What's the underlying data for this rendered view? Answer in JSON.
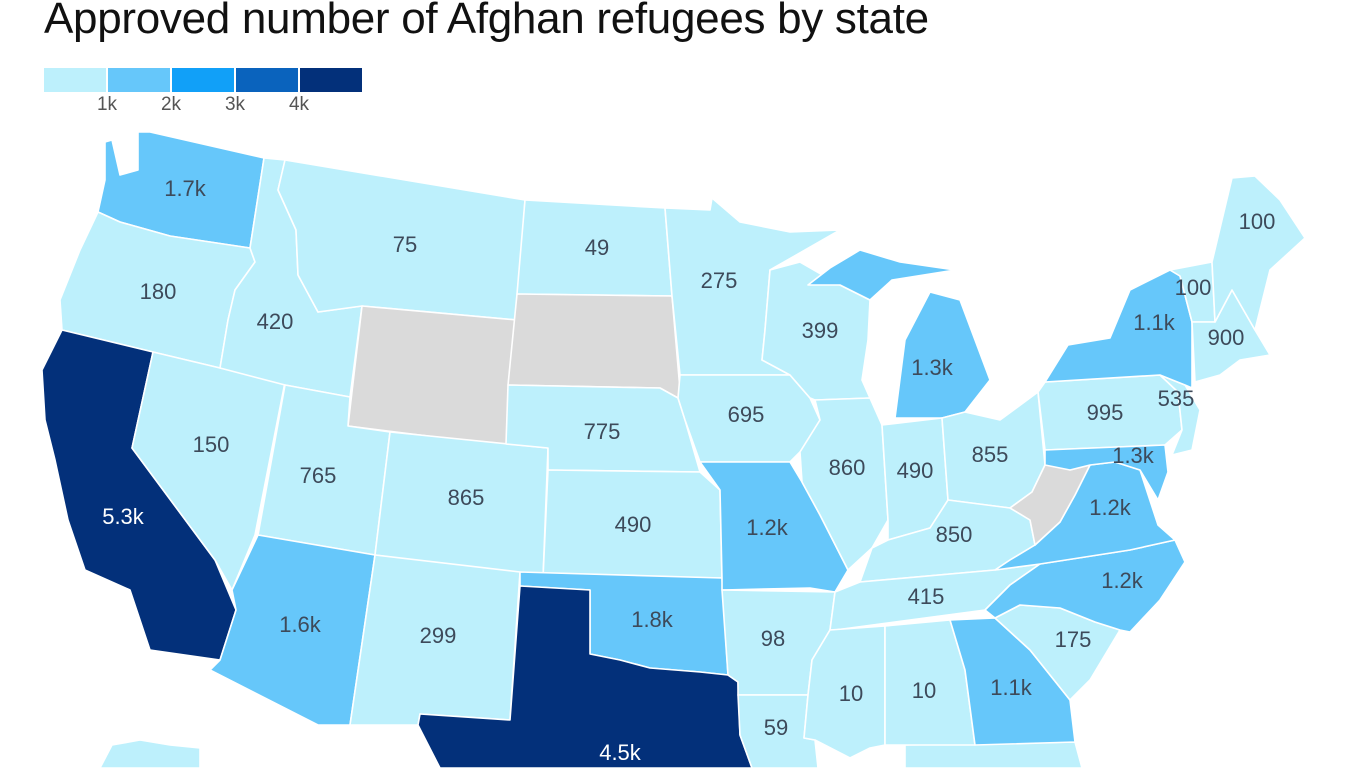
{
  "title": "Approved number of Afghan refugees by state",
  "legend": {
    "bins": [
      {
        "color": "#bdf0fc",
        "range": [
          0,
          1000
        ]
      },
      {
        "color": "#66c7fa",
        "range": [
          1000,
          2000
        ]
      },
      {
        "color": "#11a0f8",
        "range": [
          2000,
          3000
        ]
      },
      {
        "color": "#0a63bd",
        "range": [
          3000,
          4000
        ]
      },
      {
        "color": "#03307a",
        "range": [
          4000,
          null
        ]
      }
    ],
    "tick_labels": [
      "1k",
      "2k",
      "3k",
      "4k"
    ]
  },
  "colors": {
    "no_data": "#dadada",
    "label_dark": "#3d4a5a",
    "label_light": "#ffffff"
  },
  "chart_data": {
    "type": "choropleth",
    "regions": [
      {
        "state": "Washington",
        "value": 1700,
        "label": "1.7k"
      },
      {
        "state": "Oregon",
        "value": 180,
        "label": "180"
      },
      {
        "state": "California",
        "value": 5300,
        "label": "5.3k"
      },
      {
        "state": "Idaho",
        "value": 420,
        "label": "420"
      },
      {
        "state": "Nevada",
        "value": 150,
        "label": "150"
      },
      {
        "state": "Montana",
        "value": 75,
        "label": "75"
      },
      {
        "state": "Wyoming",
        "value": null,
        "label": ""
      },
      {
        "state": "Utah",
        "value": 765,
        "label": "765"
      },
      {
        "state": "Arizona",
        "value": 1600,
        "label": "1.6k"
      },
      {
        "state": "Colorado",
        "value": 865,
        "label": "865"
      },
      {
        "state": "New Mexico",
        "value": 299,
        "label": "299"
      },
      {
        "state": "North Dakota",
        "value": 49,
        "label": "49"
      },
      {
        "state": "South Dakota",
        "value": null,
        "label": ""
      },
      {
        "state": "Nebraska",
        "value": 775,
        "label": "775"
      },
      {
        "state": "Kansas",
        "value": 490,
        "label": "490"
      },
      {
        "state": "Oklahoma",
        "value": 1800,
        "label": "1.8k"
      },
      {
        "state": "Texas",
        "value": 4500,
        "label": "4.5k"
      },
      {
        "state": "Minnesota",
        "value": 275,
        "label": "275"
      },
      {
        "state": "Iowa",
        "value": 695,
        "label": "695"
      },
      {
        "state": "Missouri",
        "value": 1200,
        "label": "1.2k"
      },
      {
        "state": "Arkansas",
        "value": 98,
        "label": "98"
      },
      {
        "state": "Louisiana",
        "value": 59,
        "label": "59"
      },
      {
        "state": "Wisconsin",
        "value": 399,
        "label": "399"
      },
      {
        "state": "Illinois",
        "value": 860,
        "label": "860"
      },
      {
        "state": "Michigan",
        "value": 1300,
        "label": "1.3k"
      },
      {
        "state": "Indiana",
        "value": 490,
        "label": "490"
      },
      {
        "state": "Ohio",
        "value": 855,
        "label": "855"
      },
      {
        "state": "Kentucky",
        "value": 850,
        "label": "850"
      },
      {
        "state": "Tennessee",
        "value": 415,
        "label": "415"
      },
      {
        "state": "Mississippi",
        "value": 10,
        "label": "10"
      },
      {
        "state": "Alabama",
        "value": 10,
        "label": "10"
      },
      {
        "state": "Georgia",
        "value": 1100,
        "label": "1.1k"
      },
      {
        "state": "South Carolina",
        "value": 175,
        "label": "175"
      },
      {
        "state": "North Carolina",
        "value": 1200,
        "label": "1.2k"
      },
      {
        "state": "Virginia",
        "value": 1200,
        "label": "1.2k"
      },
      {
        "state": "West Virginia",
        "value": null,
        "label": ""
      },
      {
        "state": "Maryland",
        "value": 1300,
        "label": "1.3k"
      },
      {
        "state": "Pennsylvania",
        "value": 995,
        "label": "995"
      },
      {
        "state": "New Jersey",
        "value": 535,
        "label": "535"
      },
      {
        "state": "New York",
        "value": 1100,
        "label": "1.1k"
      },
      {
        "state": "Vermont",
        "value": 100,
        "label": "100"
      },
      {
        "state": "Massachusetts",
        "value": 900,
        "label": "900"
      },
      {
        "state": "Maine",
        "value": 100,
        "label": "100"
      }
    ]
  }
}
